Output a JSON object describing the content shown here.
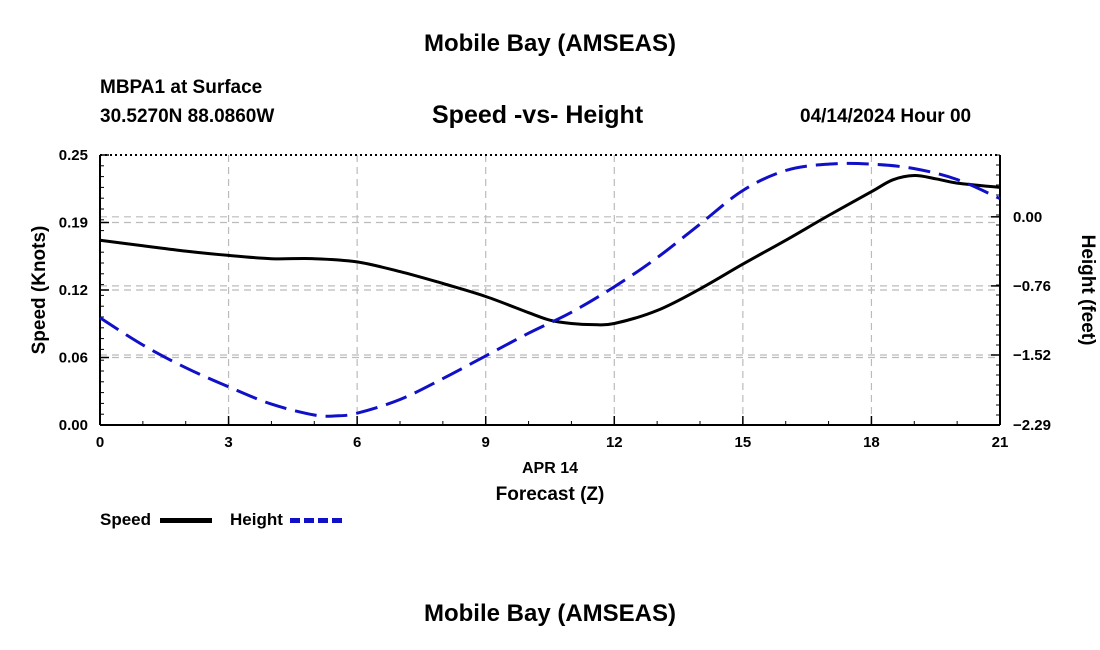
{
  "header": {
    "title": "Mobile Bay (AMSEAS)",
    "station": "MBPA1 at Surface",
    "coords": "30.5270N  88.0860W",
    "datetime": "04/14/2024 Hour 00"
  },
  "footer": {
    "title": "Mobile Bay (AMSEAS)"
  },
  "chart_data": {
    "type": "line",
    "title": "Speed -vs- Height",
    "xlabel": "Forecast (Z)",
    "xlabel_date": "APR 14",
    "ylabel_left": "Speed (Knots)",
    "ylabel_right": "Height (feet)",
    "xlim": [
      0,
      21
    ],
    "ylim_left": [
      0,
      0.25
    ],
    "ylim_right": [
      -2.29,
      0.68
    ],
    "x_ticks": [
      "0",
      "3",
      "6",
      "9",
      "12",
      "15",
      "18",
      "21"
    ],
    "x_tick_values": [
      0,
      3,
      6,
      9,
      12,
      15,
      18,
      21
    ],
    "y_ticks_left": [
      "0.00",
      "0.06",
      "0.12",
      "0.19",
      "0.25"
    ],
    "y_tick_values_left": [
      0,
      0.0625,
      0.125,
      0.1875,
      0.25
    ],
    "y_ticks_right": [
      "−2.29",
      "−1.52",
      "−0.76",
      "0.00"
    ],
    "y_tick_values_right": [
      -2.29,
      -1.52,
      -0.76,
      0.0
    ],
    "grid": true,
    "legend_position": "bottom-left",
    "colors": {
      "speed": "#000000",
      "height": "#1010c8",
      "grid": "#bbbbbb"
    },
    "series": [
      {
        "name": "Speed",
        "axis": "left",
        "style": "solid",
        "x": [
          0,
          1,
          2,
          3,
          4,
          5,
          6,
          7,
          8,
          9,
          10,
          10.5,
          11,
          11.5,
          12,
          13,
          14,
          15,
          16,
          17,
          18,
          18.5,
          19,
          19.5,
          20,
          21
        ],
        "y": [
          0.171,
          0.166,
          0.161,
          0.157,
          0.154,
          0.154,
          0.151,
          0.142,
          0.131,
          0.119,
          0.104,
          0.097,
          0.094,
          0.093,
          0.094,
          0.106,
          0.126,
          0.149,
          0.171,
          0.194,
          0.216,
          0.227,
          0.231,
          0.228,
          0.224,
          0.22
        ]
      },
      {
        "name": "Height",
        "axis": "right",
        "style": "dashed",
        "x": [
          0,
          1,
          2,
          3,
          4,
          5,
          5.5,
          6,
          7,
          8,
          9,
          10,
          11,
          12,
          13,
          14,
          15,
          16,
          17,
          18,
          19,
          20,
          21
        ],
        "y": [
          -1.11,
          -1.41,
          -1.66,
          -1.87,
          -2.06,
          -2.18,
          -2.19,
          -2.16,
          -2.01,
          -1.78,
          -1.53,
          -1.28,
          -1.05,
          -0.77,
          -0.45,
          -0.08,
          0.29,
          0.51,
          0.58,
          0.58,
          0.53,
          0.41,
          0.2
        ]
      }
    ]
  }
}
